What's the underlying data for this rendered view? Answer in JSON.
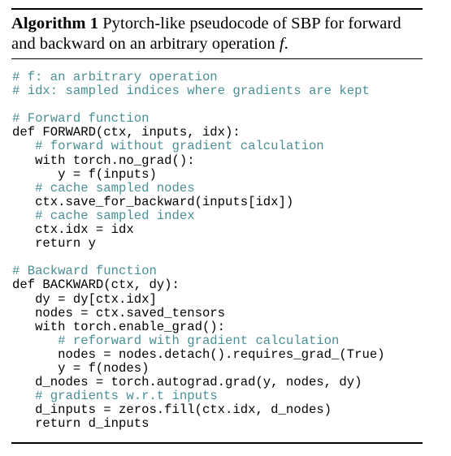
{
  "algorithm": {
    "label": "Algorithm 1",
    "caption_main": "Pytorch-like pseudocode of SBP for forward and backward on an arbitrary operation",
    "caption_var": "f",
    "caption_end": "."
  },
  "colors": {
    "comment": "#4a8f95",
    "code": "#000000"
  },
  "code_lines": [
    {
      "indent": 0,
      "text": "# f: an arbitrary operation",
      "comment": true
    },
    {
      "indent": 0,
      "text": "# idx: sampled indices where gradients are kept",
      "comment": true
    },
    {
      "indent": 0,
      "text": "",
      "comment": false
    },
    {
      "indent": 0,
      "text": "# Forward function",
      "comment": true
    },
    {
      "indent": 0,
      "text": "def FORWARD(ctx, inputs, idx):",
      "comment": false
    },
    {
      "indent": 1,
      "text": "# forward without gradient calculation",
      "comment": true
    },
    {
      "indent": 1,
      "text": "with torch.no_grad():",
      "comment": false
    },
    {
      "indent": 2,
      "text": "y = f(inputs)",
      "comment": false
    },
    {
      "indent": 1,
      "text": "# cache sampled nodes",
      "comment": true
    },
    {
      "indent": 1,
      "text": "ctx.save_for_backward(inputs[idx])",
      "comment": false
    },
    {
      "indent": 1,
      "text": "# cache sampled index",
      "comment": true
    },
    {
      "indent": 1,
      "text": "ctx.idx = idx",
      "comment": false
    },
    {
      "indent": 1,
      "text": "return y",
      "comment": false
    },
    {
      "indent": 0,
      "text": "",
      "comment": false
    },
    {
      "indent": 0,
      "text": "# Backward function",
      "comment": true
    },
    {
      "indent": 0,
      "text": "def BACKWARD(ctx, dy):",
      "comment": false
    },
    {
      "indent": 1,
      "text": "dy = dy[ctx.idx]",
      "comment": false
    },
    {
      "indent": 1,
      "text": "nodes = ctx.saved_tensors",
      "comment": false
    },
    {
      "indent": 1,
      "text": "with torch.enable_grad():",
      "comment": false
    },
    {
      "indent": 2,
      "text": "# reforward with gradient calculation",
      "comment": true
    },
    {
      "indent": 2,
      "text": "nodes = nodes.detach().requires_grad_(True)",
      "comment": false
    },
    {
      "indent": 2,
      "text": "y = f(nodes)",
      "comment": false
    },
    {
      "indent": 1,
      "text": "d_nodes = torch.autograd.grad(y, nodes, dy)",
      "comment": false
    },
    {
      "indent": 1,
      "text": "# gradients w.r.t inputs",
      "comment": true
    },
    {
      "indent": 1,
      "text": "d_inputs = zeros.fill(ctx.idx, d_nodes)",
      "comment": false
    },
    {
      "indent": 1,
      "text": "return d_inputs",
      "comment": false
    }
  ]
}
